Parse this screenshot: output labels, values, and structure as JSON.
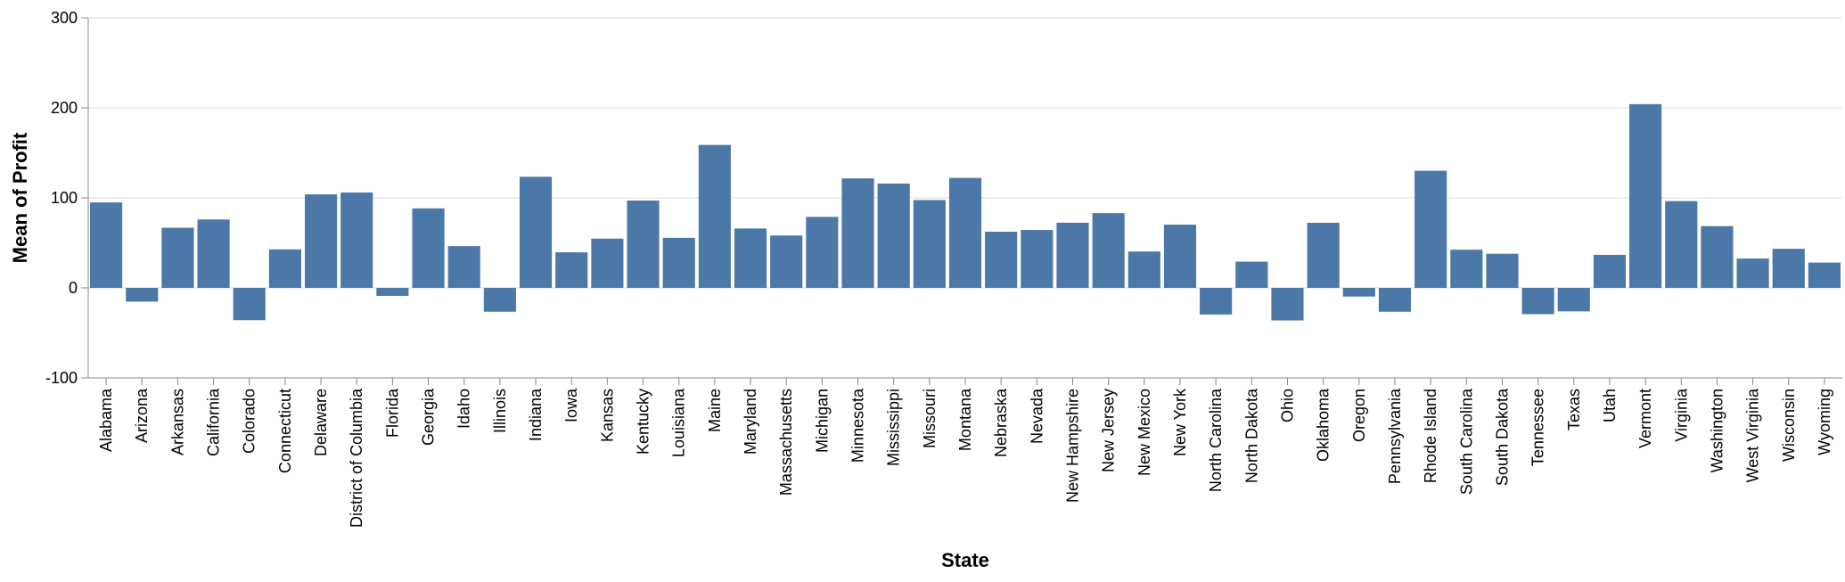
{
  "chart_data": {
    "type": "bar",
    "xlabel": "State",
    "ylabel": "Mean of Profit",
    "ylim": [
      -100,
      300
    ],
    "yticks": [
      -100,
      0,
      100,
      200,
      300
    ],
    "grid": true,
    "bar_color": "#4c78a8",
    "categories": [
      "Alabama",
      "Arizona",
      "Arkansas",
      "California",
      "Colorado",
      "Connecticut",
      "Delaware",
      "District of Columbia",
      "Florida",
      "Georgia",
      "Idaho",
      "Illinois",
      "Indiana",
      "Iowa",
      "Kansas",
      "Kentucky",
      "Louisiana",
      "Maine",
      "Maryland",
      "Massachusetts",
      "Michigan",
      "Minnesota",
      "Mississippi",
      "Missouri",
      "Montana",
      "Nebraska",
      "Nevada",
      "New Hampshire",
      "New Jersey",
      "New Mexico",
      "New York",
      "North Carolina",
      "North Dakota",
      "Ohio",
      "Oklahoma",
      "Oregon",
      "Pennsylvania",
      "Rhode Island",
      "South Carolina",
      "South Dakota",
      "Tennessee",
      "Texas",
      "Utah",
      "Vermont",
      "Virginia",
      "Washington",
      "West Virginia",
      "Wisconsin",
      "Wyoming"
    ],
    "values": [
      94.9,
      -15.3,
      66.8,
      76.0,
      -35.9,
      42.8,
      103.9,
      105.96,
      -8.9,
      88.3,
      46.4,
      -26.5,
      123.4,
      39.5,
      54.7,
      97.0,
      55.6,
      158.8,
      66.0,
      58.2,
      78.9,
      121.6,
      115.9,
      97.6,
      122.2,
      62.4,
      64.3,
      72.4,
      83.1,
      40.4,
      70.2,
      -29.6,
      29.1,
      -36.2,
      72.3,
      -9.6,
      -26.5,
      130.1,
      42.4,
      37.9,
      -29.2,
      -26.1,
      36.7,
      204.1,
      96.4,
      68.6,
      32.6,
      43.4,
      28.1
    ]
  }
}
